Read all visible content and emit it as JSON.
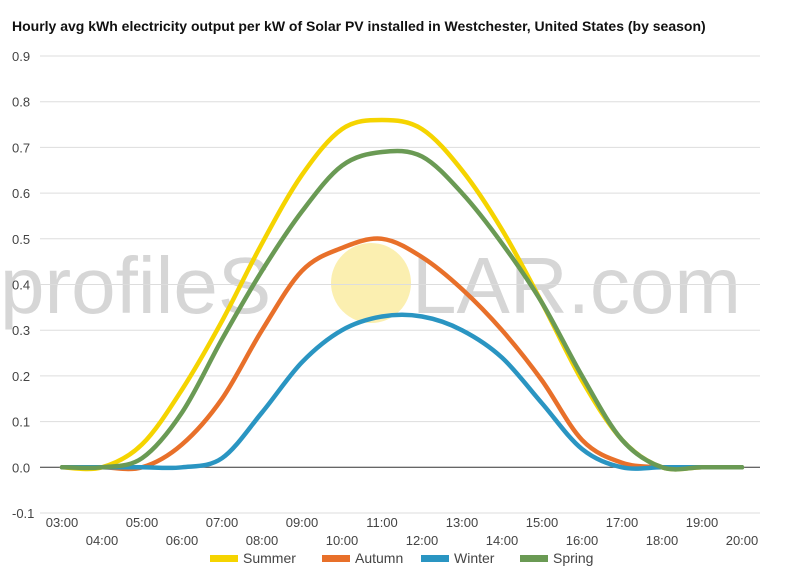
{
  "chart_data": {
    "type": "line",
    "title": "Hourly avg kWh electricity output per kW of Solar PV installed in Westchester, United States (by season)",
    "xlabel": "",
    "ylabel": "",
    "ylim": [
      -0.1,
      0.9
    ],
    "yticks": [
      "-0.1",
      "0.0",
      "0.1",
      "0.2",
      "0.3",
      "0.4",
      "0.5",
      "0.6",
      "0.7",
      "0.8",
      "0.9"
    ],
    "x": [
      "03:00",
      "04:00",
      "05:00",
      "06:00",
      "07:00",
      "08:00",
      "09:00",
      "10:00",
      "11:00",
      "12:00",
      "13:00",
      "14:00",
      "15:00",
      "16:00",
      "17:00",
      "18:00",
      "19:00",
      "20:00"
    ],
    "grid": true,
    "legend_position": "bottom",
    "series": [
      {
        "name": "Summer",
        "color": "#f5d400",
        "values": [
          0.0,
          0.0,
          0.05,
          0.17,
          0.32,
          0.49,
          0.64,
          0.74,
          0.76,
          0.74,
          0.65,
          0.52,
          0.36,
          0.19,
          0.06,
          0.0,
          0.0,
          0.0
        ]
      },
      {
        "name": "Autumn",
        "color": "#e8702a",
        "values": [
          0.0,
          0.0,
          0.0,
          0.05,
          0.15,
          0.3,
          0.43,
          0.48,
          0.5,
          0.46,
          0.39,
          0.3,
          0.19,
          0.06,
          0.01,
          0.0,
          0.0,
          0.0
        ]
      },
      {
        "name": "Winter",
        "color": "#2a95c2",
        "values": [
          0.0,
          0.0,
          0.0,
          0.0,
          0.02,
          0.12,
          0.23,
          0.3,
          0.33,
          0.33,
          0.3,
          0.24,
          0.14,
          0.04,
          0.0,
          0.0,
          0.0,
          0.0
        ]
      },
      {
        "name": "Spring",
        "color": "#6a9a54",
        "values": [
          0.0,
          0.0,
          0.02,
          0.12,
          0.28,
          0.43,
          0.56,
          0.66,
          0.69,
          0.68,
          0.6,
          0.49,
          0.36,
          0.2,
          0.06,
          0.0,
          0.0,
          0.0
        ]
      }
    ]
  },
  "watermark": {
    "text_left": "profileS",
    "text_right": "LAR.com",
    "sun_color": "#fbefb0"
  }
}
